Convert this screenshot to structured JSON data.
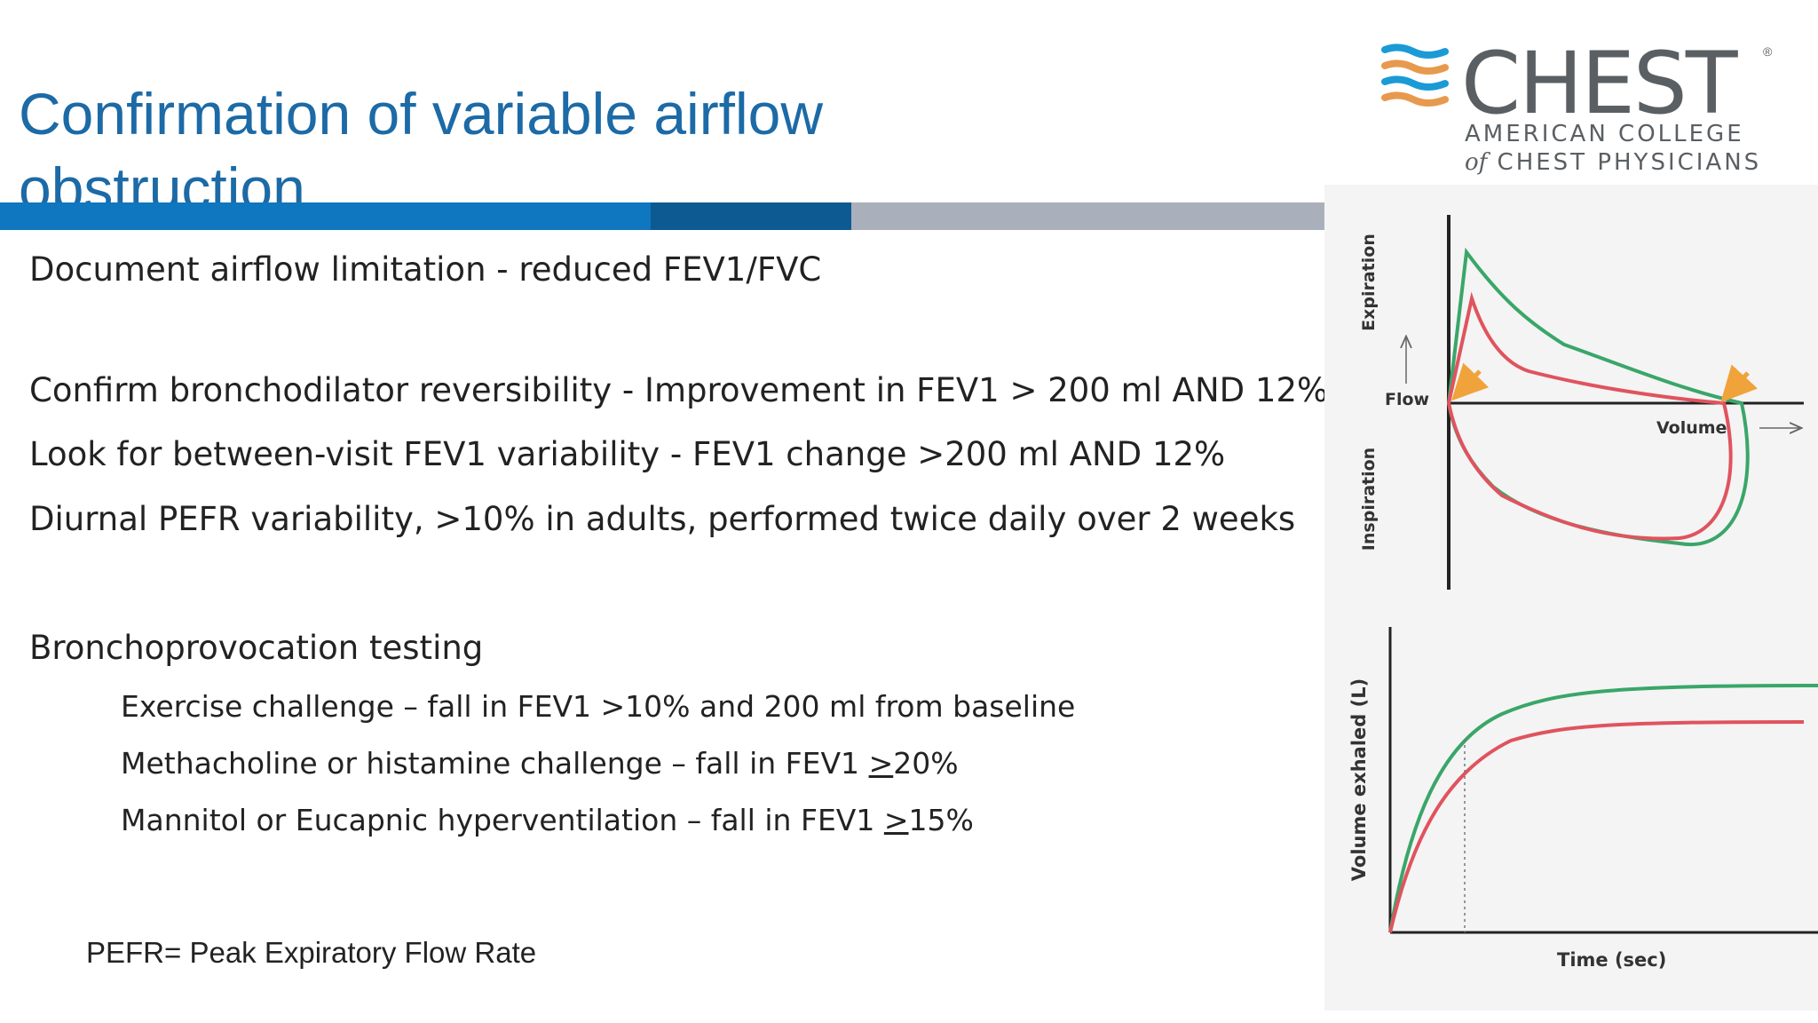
{
  "slide": {
    "title": "Confirmation of variable airflow obstruction",
    "lines": [
      "Document airflow limitation - reduced FEV1/FVC",
      "Confirm bronchodilator reversibility - Improvement in FEV1 > 200 ml AND 12%",
      "Look for between-visit FEV1 variability - FEV1 change >200 ml AND 12%",
      "Diurnal PEFR variability, >10% in adults, performed twice daily over 2 weeks",
      "Bronchoprovocation testing"
    ],
    "sub_lines": {
      "exercise": "Exercise challenge – fall in FEV1 >10% and 200 ml from baseline",
      "methacholine_prefix": "Methacholine or histamine challenge – fall in FEV1 ",
      "methacholine_gt": ">",
      "methacholine_value": "20%",
      "mannitol_prefix": "Mannitol or Eucapnic hyperventilation – fall in FEV1 ",
      "mannitol_gt": ">",
      "mannitol_value": "15%"
    },
    "footnote": "PEFR= Peak Expiratory Flow Rate"
  },
  "logo": {
    "word": "CHEST",
    "registered": "®",
    "line1": "AMERICAN COLLEGE",
    "line2_of": "of",
    "line2_rest": " CHEST PHYSICIANS"
  },
  "figure": {
    "flow_volume": {
      "y_label_top": "Expiration",
      "y_label_bottom": "Inspiration",
      "flow_label": "Flow",
      "volume_label": "Volume"
    },
    "volume_time": {
      "y_label": "Volume exhaled (L)",
      "x_label": "Time (sec)"
    },
    "colors": {
      "green": "#3aa669",
      "red": "#e0535e",
      "arrow": "#f0a33a",
      "axis": "#222222"
    }
  }
}
